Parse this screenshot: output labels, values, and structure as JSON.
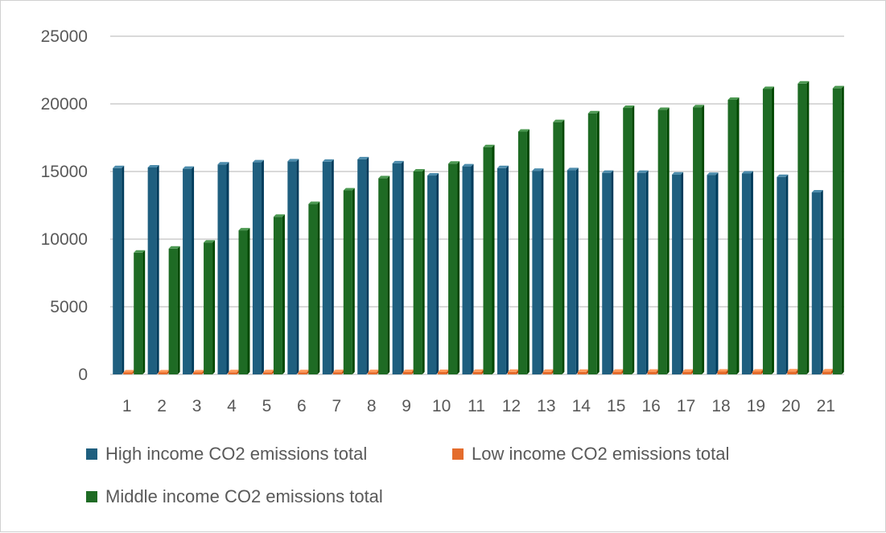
{
  "chart_data": {
    "type": "bar",
    "title": "",
    "xlabel": "",
    "ylabel": "",
    "categories": [
      "1",
      "2",
      "3",
      "4",
      "5",
      "6",
      "7",
      "8",
      "9",
      "10",
      "11",
      "12",
      "13",
      "14",
      "15",
      "16",
      "17",
      "18",
      "19",
      "20",
      "21"
    ],
    "ylim": [
      0,
      25000
    ],
    "yticks": [
      "0",
      "5000",
      "10000",
      "15000",
      "20000",
      "25000"
    ],
    "grid": true,
    "legend_position": "bottom",
    "series": [
      {
        "name": "High income CO2 emissions total",
        "color": "#1f5f7f",
        "values": [
          15250,
          15300,
          15200,
          15520,
          15680,
          15750,
          15720,
          15900,
          15600,
          14700,
          15380,
          15250,
          15050,
          15100,
          14900,
          14900,
          14780,
          14750,
          14850,
          14600,
          13450
        ]
      },
      {
        "name": "Low income CO2 emissions total",
        "color": "#e46c2c",
        "values": [
          150,
          150,
          150,
          160,
          160,
          160,
          170,
          170,
          180,
          180,
          190,
          190,
          190,
          190,
          200,
          200,
          200,
          210,
          210,
          220,
          220
        ]
      },
      {
        "name": "Middle income CO2 emissions total",
        "color": "#1e6b24",
        "values": [
          9000,
          9300,
          9750,
          10650,
          11650,
          12600,
          13600,
          14500,
          15000,
          15580,
          16800,
          17950,
          18650,
          19300,
          19700,
          19550,
          19750,
          20300,
          21100,
          21500,
          21150
        ]
      }
    ]
  }
}
